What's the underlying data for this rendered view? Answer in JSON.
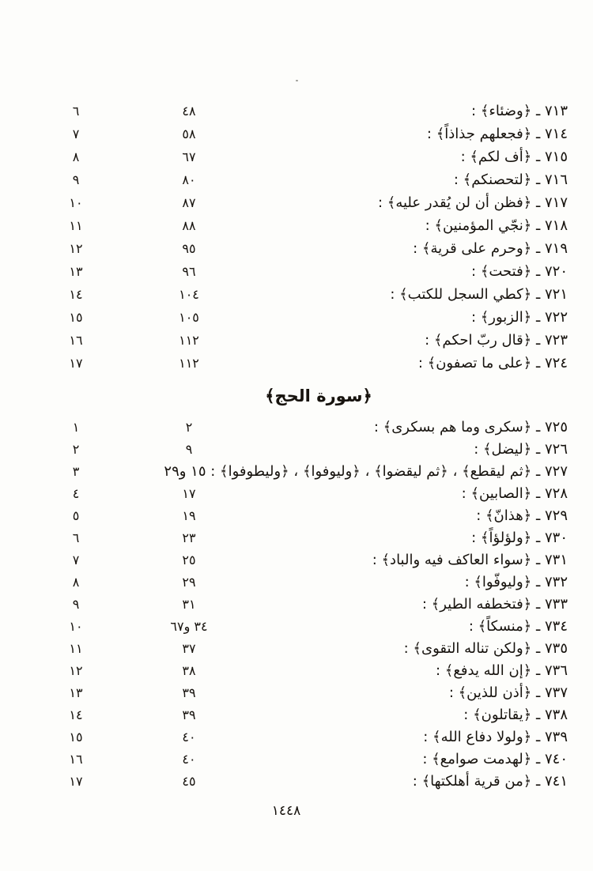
{
  "footer": {
    "page_number": "١٤٤٨"
  },
  "sections": [
    {
      "rows": [
        {
          "entry": "٧١٣ ـ ﴿وضئاء﴾ :",
          "aya": "٤٨",
          "serial": "٦"
        },
        {
          "entry": "٧١٤ ـ ﴿فجعلهم جذاذاً﴾ :",
          "aya": "٥٨",
          "serial": "٧"
        },
        {
          "entry": "٧١٥ ـ ﴿أف لكم﴾ :",
          "aya": "٦٧",
          "serial": "٨"
        },
        {
          "entry": "٧١٦ ـ ﴿لتحصنكم﴾ :",
          "aya": "٨٠",
          "serial": "٩"
        },
        {
          "entry": "٧١٧ ـ ﴿فظن أن لن يُقدر عليه﴾ :",
          "aya": "٨٧",
          "serial": "١٠"
        },
        {
          "entry": "٧١٨ ـ ﴿نجّي المؤمنين﴾ :",
          "aya": "٨٨",
          "serial": "١١"
        },
        {
          "entry": "٧١٩ ـ ﴿وحرم على قرية﴾ :",
          "aya": "٩٥",
          "serial": "١٢"
        },
        {
          "entry": "٧٢٠ ـ ﴿فتحت﴾ :",
          "aya": "٩٦",
          "serial": "١٣"
        },
        {
          "entry": "٧٢١ ـ ﴿كطي السجل للكتب﴾ :",
          "aya": "١٠٤",
          "serial": "١٤"
        },
        {
          "entry": "٧٢٢ ـ ﴿الزبور﴾ :",
          "aya": "١٠٥",
          "serial": "١٥"
        },
        {
          "entry": "٧٢٣ ـ ﴿قال ربّ احكم﴾ :",
          "aya": "١١٢",
          "serial": "١٦"
        },
        {
          "entry": "٧٢٤ ـ ﴿على ما تصفون﴾ :",
          "aya": "١١٢",
          "serial": "١٧"
        }
      ]
    },
    {
      "heading": "﴿سورة الحج﴾",
      "rows": [
        {
          "entry": "٧٢٥ ـ ﴿سكرى وما هم بسكرى﴾ :",
          "aya": "٢",
          "serial": "١"
        },
        {
          "entry": "٧٢٦ ـ ﴿ليضل﴾ :",
          "aya": "٩",
          "serial": "٢"
        },
        {
          "entry": "٧٢٧ ـ ﴿ثم ليقطع﴾ ، ﴿ثم ليقضوا﴾ ، ﴿وليوفوا﴾ ، ﴿وليطوفوا﴾ : ١٥ و٢٩",
          "aya": "",
          "serial": "٣"
        },
        {
          "entry": "٧٢٨ ـ ﴿الصابين﴾ :",
          "aya": "١٧",
          "serial": "٤"
        },
        {
          "entry": "٧٢٩ ـ ﴿هذانّ﴾ :",
          "aya": "١٩",
          "serial": "٥"
        },
        {
          "entry": "٧٣٠ ـ ﴿ولؤلؤاً﴾ :",
          "aya": "٢٣",
          "serial": "٦"
        },
        {
          "entry": "٧٣١ ـ ﴿سواء العاكف فيه والباد﴾ :",
          "aya": "٢٥",
          "serial": "٧"
        },
        {
          "entry": "٧٣٢ ـ ﴿وليوفّوا﴾ :",
          "aya": "٢٩",
          "serial": "٨"
        },
        {
          "entry": "٧٣٣ ـ ﴿فتخطفه الطير﴾ :",
          "aya": "٣١",
          "serial": "٩"
        },
        {
          "entry": "٧٣٤ ـ ﴿منسكاً﴾ :",
          "aya": "٣٤ و٦٧",
          "serial": "١٠"
        },
        {
          "entry": "٧٣٥ ـ ﴿ولكن تناله التقوى﴾ :",
          "aya": "٣٧",
          "serial": "١١"
        },
        {
          "entry": "٧٣٦ ـ ﴿إن الله يدفع﴾ :",
          "aya": "٣٨",
          "serial": "١٢"
        },
        {
          "entry": "٧٣٧ ـ ﴿أذن للذين﴾ :",
          "aya": "٣٩",
          "serial": "١٣"
        },
        {
          "entry": "٧٣٨ ـ ﴿يقاتلون﴾ :",
          "aya": "٣٩",
          "serial": "١٤"
        },
        {
          "entry": "٧٣٩ ـ ﴿ولولا دفاع الله﴾ :",
          "aya": "٤٠",
          "serial": "١٥"
        },
        {
          "entry": "٧٤٠ ـ ﴿لهدمت صوامع﴾ :",
          "aya": "٤٠",
          "serial": "١٦"
        },
        {
          "entry": "٧٤١ ـ ﴿من قرية أهلكتها﴾ :",
          "aya": "٤٥",
          "serial": "١٧"
        }
      ]
    }
  ]
}
